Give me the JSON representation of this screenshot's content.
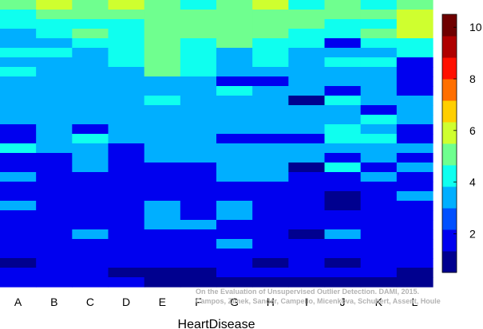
{
  "chart_data": {
    "type": "heatmap",
    "title": "",
    "xlabel": "HeartDisease",
    "ylabel": "",
    "categories": [
      "A",
      "B",
      "C",
      "D",
      "E",
      "F",
      "G",
      "H",
      "I",
      "J",
      "K",
      "L"
    ],
    "n_rows": 30,
    "value_range": [
      0.5,
      10.5
    ],
    "colorbar": {
      "ticks": [
        2,
        4,
        6,
        8,
        10
      ],
      "colors": [
        "#00008f",
        "#0000ef",
        "#0050ff",
        "#00afff",
        "#0fffef",
        "#6fff8f",
        "#cfff2f",
        "#ffcf00",
        "#ff6f00",
        "#ff1000",
        "#af0000",
        "#6f0000"
      ]
    },
    "grid": false,
    "values": [
      [
        5,
        6,
        5,
        6,
        5,
        4,
        5,
        6,
        4,
        5,
        4,
        5
      ],
      [
        4,
        5,
        5,
        5,
        5,
        5,
        5,
        5,
        5,
        5,
        5,
        6
      ],
      [
        4,
        4,
        4,
        4,
        5,
        5,
        5,
        5,
        5,
        4,
        4,
        6
      ],
      [
        3,
        4,
        5,
        4,
        5,
        5,
        5,
        5,
        4,
        4,
        5,
        6
      ],
      [
        3,
        3,
        4,
        4,
        5,
        4,
        5,
        4,
        4,
        2,
        4,
        4
      ],
      [
        4,
        4,
        3,
        4,
        5,
        4,
        3,
        4,
        3,
        3,
        3,
        4
      ],
      [
        3,
        3,
        3,
        4,
        5,
        4,
        3,
        4,
        3,
        4,
        4,
        2
      ],
      [
        4,
        3,
        3,
        3,
        5,
        4,
        3,
        3,
        3,
        3,
        3,
        2
      ],
      [
        3,
        3,
        3,
        3,
        3,
        3,
        2,
        2,
        3,
        3,
        3,
        2
      ],
      [
        3,
        3,
        3,
        3,
        3,
        3,
        4,
        3,
        3,
        2,
        3,
        2
      ],
      [
        3,
        3,
        3,
        3,
        4,
        3,
        3,
        3,
        1,
        4,
        3,
        3
      ],
      [
        3,
        3,
        3,
        3,
        3,
        3,
        3,
        3,
        3,
        3,
        2,
        3
      ],
      [
        3,
        3,
        3,
        3,
        3,
        3,
        3,
        3,
        3,
        3,
        4,
        3
      ],
      [
        2,
        3,
        2,
        3,
        3,
        3,
        3,
        3,
        3,
        4,
        3,
        2
      ],
      [
        2,
        3,
        4,
        3,
        3,
        3,
        2,
        2,
        2,
        4,
        4,
        2
      ],
      [
        4,
        3,
        3,
        2,
        3,
        3,
        3,
        3,
        3,
        3,
        3,
        3
      ],
      [
        2,
        2,
        3,
        2,
        3,
        3,
        3,
        3,
        3,
        2,
        3,
        2
      ],
      [
        2,
        2,
        3,
        2,
        2,
        2,
        3,
        3,
        1,
        4,
        2,
        3
      ],
      [
        3,
        2,
        2,
        2,
        2,
        2,
        3,
        3,
        2,
        2,
        3,
        2
      ],
      [
        2,
        2,
        2,
        2,
        2,
        2,
        2,
        2,
        2,
        2,
        2,
        2
      ],
      [
        2,
        2,
        2,
        2,
        2,
        2,
        2,
        2,
        2,
        1,
        2,
        3
      ],
      [
        3,
        2,
        2,
        2,
        3,
        2,
        3,
        2,
        2,
        1,
        2,
        2
      ],
      [
        2,
        2,
        2,
        2,
        3,
        2,
        3,
        2,
        2,
        2,
        2,
        2
      ],
      [
        2,
        2,
        2,
        2,
        3,
        3,
        2,
        2,
        2,
        2,
        2,
        2
      ],
      [
        2,
        2,
        3,
        2,
        2,
        2,
        2,
        2,
        1,
        3,
        2,
        2
      ],
      [
        2,
        2,
        2,
        2,
        2,
        2,
        3,
        2,
        2,
        2,
        2,
        2
      ],
      [
        2,
        2,
        2,
        2,
        2,
        2,
        2,
        2,
        2,
        2,
        2,
        2
      ],
      [
        1,
        2,
        2,
        2,
        2,
        2,
        2,
        1,
        2,
        1,
        2,
        2
      ],
      [
        2,
        2,
        2,
        1,
        1,
        1,
        2,
        2,
        2,
        2,
        2,
        1
      ],
      [
        2,
        2,
        2,
        2,
        1,
        1,
        1,
        1,
        1,
        1,
        1,
        1
      ]
    ]
  },
  "watermark": {
    "line1": "On the Evaluation of Unsupervised Outlier Detection. DAMI, 2015.",
    "line2": "Campos, Zimek, Sander, Campello, Micenkova, Schubert, Assent, Houle"
  }
}
